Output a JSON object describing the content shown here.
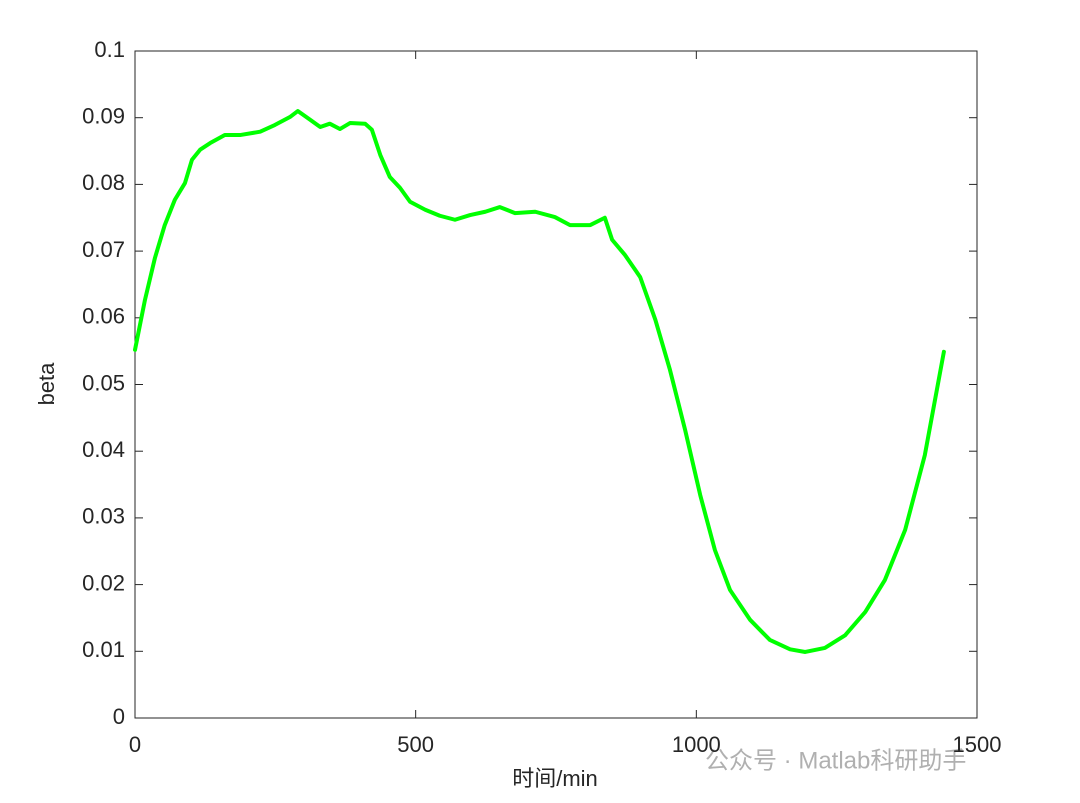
{
  "chart_data": {
    "type": "line",
    "xlabel": "时间/min",
    "ylabel": "beta",
    "x": [
      0,
      17.8,
      35.6,
      53,
      71,
      89,
      101.5,
      116,
      134,
      160,
      187,
      223,
      249,
      276,
      290,
      312,
      330,
      347,
      365,
      383,
      410,
      422,
      437,
      454,
      472,
      490,
      517,
      543,
      570,
      597,
      624,
      650,
      677,
      713,
      748,
      775,
      811,
      837,
      850,
      873,
      900,
      927,
      953,
      980,
      1007,
      1033,
      1060,
      1096,
      1131,
      1167,
      1194,
      1229,
      1265,
      1301,
      1336,
      1372,
      1407,
      1441
    ],
    "series": [
      {
        "name": "beta",
        "color": "#00ff00",
        "values": [
          0.0552,
          0.0627,
          0.069,
          0.0739,
          0.0777,
          0.0802,
          0.0837,
          0.0852,
          0.0862,
          0.0874,
          0.0874,
          0.0879,
          0.0889,
          0.0901,
          0.091,
          0.0897,
          0.0886,
          0.0891,
          0.0883,
          0.0892,
          0.0891,
          0.0882,
          0.0844,
          0.0811,
          0.0795,
          0.0774,
          0.0762,
          0.0753,
          0.0747,
          0.0754,
          0.0759,
          0.0766,
          0.0757,
          0.0759,
          0.0751,
          0.0739,
          0.0739,
          0.075,
          0.0717,
          0.0694,
          0.0661,
          0.0597,
          0.0522,
          0.0432,
          0.0334,
          0.0252,
          0.0192,
          0.0147,
          0.0117,
          0.0103,
          0.0099,
          0.0105,
          0.0124,
          0.0159,
          0.0207,
          0.0282,
          0.0394,
          0.0549
        ]
      }
    ],
    "xlim": [
      0,
      1500
    ],
    "xticks": [
      0,
      500,
      1000,
      1500
    ],
    "ylim": [
      0,
      0.1
    ],
    "yticks": [
      0,
      0.01,
      0.02,
      0.03,
      0.04,
      0.05,
      0.06,
      0.07,
      0.08,
      0.09,
      0.1
    ],
    "grid": false,
    "watermark": "公众号 · Matlab科研助手"
  }
}
